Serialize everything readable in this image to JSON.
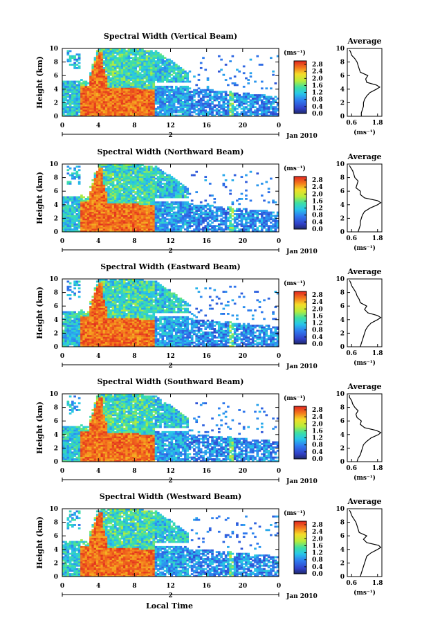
{
  "figure": {
    "xlabel": "Local Time",
    "date_label": "Jan 2010",
    "day_label": "2",
    "unit_label": "(ms⁻¹)",
    "avg_title": "Average",
    "avg_xlabel": "(ms⁻¹)"
  },
  "chart_data": [
    {
      "type": "heatmap",
      "title": "Spectral Width (Vertical Beam)",
      "ylabel": "Height (km)",
      "xlabel": "Local Time",
      "x_ticks": [
        "0",
        "4",
        "8",
        "12",
        "16",
        "20",
        "0"
      ],
      "xlim": [
        0,
        24
      ],
      "y_ticks": [
        "0",
        "2",
        "4",
        "6",
        "8",
        "10"
      ],
      "ylim": [
        0,
        10
      ],
      "colorbar": {
        "label": "(ms⁻¹)",
        "ticks": [
          "0.0",
          "0.4",
          "0.8",
          "1.2",
          "1.6",
          "2.0",
          "2.4",
          "2.8"
        ],
        "range": [
          0.0,
          3.0
        ]
      },
      "average_profile": {
        "title": "Average",
        "xlabel": "(ms⁻¹)",
        "x_ticks": [
          "0.6",
          "1.8"
        ],
        "xlim": [
          0.4,
          2.0
        ],
        "y_ticks": [
          "0",
          "2",
          "4",
          "6",
          "8",
          "10"
        ],
        "height_km": [
          0,
          0.5,
          1,
          1.5,
          2,
          2.5,
          3,
          3.5,
          4,
          4.3,
          4.6,
          5,
          5.5,
          6,
          6.5,
          7,
          7.5,
          8,
          8.5,
          9,
          9.5,
          9.8
        ],
        "width_ms": [
          1.05,
          1.05,
          1.1,
          1.15,
          1.15,
          1.2,
          1.3,
          1.45,
          1.75,
          1.9,
          1.75,
          1.3,
          1.25,
          1.35,
          1.0,
          0.95,
          0.9,
          0.85,
          0.75,
          0.6,
          0.55,
          0.5
        ]
      }
    },
    {
      "type": "heatmap",
      "title": "Spectral Width (Northward Beam)",
      "ylabel": "Height (km)",
      "xlabel": "Local Time",
      "x_ticks": [
        "0",
        "4",
        "8",
        "12",
        "16",
        "20",
        "0"
      ],
      "xlim": [
        0,
        24
      ],
      "y_ticks": [
        "0",
        "2",
        "4",
        "6",
        "8",
        "10"
      ],
      "ylim": [
        0,
        10
      ],
      "colorbar": {
        "label": "(ms⁻¹)",
        "ticks": [
          "0.0",
          "0.4",
          "0.8",
          "1.2",
          "1.6",
          "2.0",
          "2.4",
          "2.8"
        ],
        "range": [
          0.0,
          3.0
        ]
      },
      "average_profile": {
        "title": "Average",
        "xlabel": "(ms⁻¹)",
        "x_ticks": [
          "0.6",
          "1.8"
        ],
        "xlim": [
          0.4,
          2.0
        ],
        "y_ticks": [
          "0",
          "2",
          "4",
          "6",
          "8",
          "10"
        ],
        "height_km": [
          0,
          0.5,
          1,
          1.5,
          2,
          2.5,
          3,
          3.5,
          4,
          4.3,
          4.6,
          5,
          5.5,
          6,
          6.5,
          7,
          7.5,
          8,
          8.5,
          9,
          9.5,
          9.8
        ],
        "width_ms": [
          0.9,
          0.95,
          1.0,
          1.0,
          1.05,
          1.1,
          1.2,
          1.45,
          1.8,
          1.95,
          1.8,
          1.2,
          1.0,
          1.0,
          0.8,
          0.85,
          0.9,
          0.75,
          0.7,
          0.65,
          0.55,
          0.5
        ]
      }
    },
    {
      "type": "heatmap",
      "title": "Spectral Width (Eastward Beam)",
      "ylabel": "Height (km)",
      "xlabel": "Local Time",
      "x_ticks": [
        "0",
        "4",
        "8",
        "12",
        "16",
        "20",
        "0"
      ],
      "xlim": [
        0,
        24
      ],
      "y_ticks": [
        "0",
        "2",
        "4",
        "6",
        "8",
        "10"
      ],
      "ylim": [
        0,
        10
      ],
      "colorbar": {
        "label": "(ms⁻¹)",
        "ticks": [
          "0.0",
          "0.4",
          "0.8",
          "1.2",
          "1.6",
          "2.0",
          "2.4",
          "2.8"
        ],
        "range": [
          0.0,
          3.0
        ]
      },
      "average_profile": {
        "title": "Average",
        "xlabel": "(ms⁻¹)",
        "x_ticks": [
          "0.6",
          "1.8"
        ],
        "xlim": [
          0.4,
          2.0
        ],
        "y_ticks": [
          "0",
          "2",
          "4",
          "6",
          "8",
          "10"
        ],
        "height_km": [
          0,
          0.5,
          1,
          1.5,
          2,
          2.5,
          3,
          3.5,
          4,
          4.3,
          4.6,
          5,
          5.5,
          6,
          6.5,
          7,
          7.5,
          8,
          8.5,
          9,
          9.5,
          9.8
        ],
        "width_ms": [
          1.0,
          1.05,
          1.1,
          1.15,
          1.2,
          1.25,
          1.35,
          1.5,
          1.8,
          1.95,
          1.8,
          1.35,
          1.2,
          1.3,
          1.0,
          0.95,
          0.85,
          0.8,
          0.7,
          0.6,
          0.55,
          0.5
        ]
      }
    },
    {
      "type": "heatmap",
      "title": "Spectral Width (Southward Beam)",
      "ylabel": "Height (km)",
      "xlabel": "Local Time",
      "x_ticks": [
        "0",
        "4",
        "8",
        "12",
        "16",
        "20",
        "0"
      ],
      "xlim": [
        0,
        24
      ],
      "y_ticks": [
        "0",
        "2",
        "4",
        "6",
        "8",
        "10"
      ],
      "ylim": [
        0,
        10
      ],
      "colorbar": {
        "label": "(ms⁻¹)",
        "ticks": [
          "0.0",
          "0.4",
          "0.8",
          "1.2",
          "1.6",
          "2.0",
          "2.4",
          "2.8"
        ],
        "range": [
          0.0,
          3.0
        ]
      },
      "average_profile": {
        "title": "Average",
        "xlabel": "(ms⁻¹)",
        "x_ticks": [
          "0.6",
          "1.8"
        ],
        "xlim": [
          0.4,
          2.0
        ],
        "y_ticks": [
          "0",
          "2",
          "4",
          "6",
          "8",
          "10"
        ],
        "height_km": [
          0,
          0.5,
          1,
          1.5,
          2,
          2.5,
          3,
          3.5,
          4,
          4.3,
          4.6,
          5,
          5.5,
          6,
          6.5,
          7,
          7.5,
          8,
          8.5,
          9,
          9.5,
          9.8
        ],
        "width_ms": [
          0.85,
          0.9,
          1.0,
          1.05,
          1.1,
          1.15,
          1.3,
          1.5,
          1.85,
          1.95,
          1.75,
          1.2,
          1.0,
          1.05,
          0.85,
          0.8,
          0.9,
          0.75,
          0.65,
          0.6,
          0.5,
          0.5
        ]
      }
    },
    {
      "type": "heatmap",
      "title": "Spectral Width (Westward Beam)",
      "ylabel": "Height (km)",
      "xlabel": "Local Time",
      "x_ticks": [
        "0",
        "4",
        "8",
        "12",
        "16",
        "20",
        "0"
      ],
      "xlim": [
        0,
        24
      ],
      "y_ticks": [
        "0",
        "2",
        "4",
        "6",
        "8",
        "10"
      ],
      "ylim": [
        0,
        10
      ],
      "colorbar": {
        "label": "(ms⁻¹)",
        "ticks": [
          "0.0",
          "0.4",
          "0.8",
          "1.2",
          "1.6",
          "2.0",
          "2.4",
          "2.8"
        ],
        "range": [
          0.0,
          3.0
        ]
      },
      "average_profile": {
        "title": "Average",
        "xlabel": "(ms⁻¹)",
        "x_ticks": [
          "0.6",
          "1.8"
        ],
        "xlim": [
          0.4,
          2.0
        ],
        "y_ticks": [
          "0",
          "2",
          "4",
          "6",
          "8",
          "10"
        ],
        "height_km": [
          0,
          0.5,
          1,
          1.5,
          2,
          2.5,
          3,
          3.5,
          4,
          4.3,
          4.6,
          5,
          5.5,
          6,
          6.5,
          7,
          7.5,
          8,
          8.5,
          9,
          9.5,
          9.8
        ],
        "width_ms": [
          1.0,
          1.05,
          1.1,
          1.15,
          1.2,
          1.25,
          1.3,
          1.5,
          1.8,
          1.95,
          1.85,
          1.3,
          1.15,
          1.3,
          0.95,
          0.9,
          0.85,
          0.8,
          0.7,
          0.6,
          0.55,
          0.5
        ]
      }
    }
  ]
}
